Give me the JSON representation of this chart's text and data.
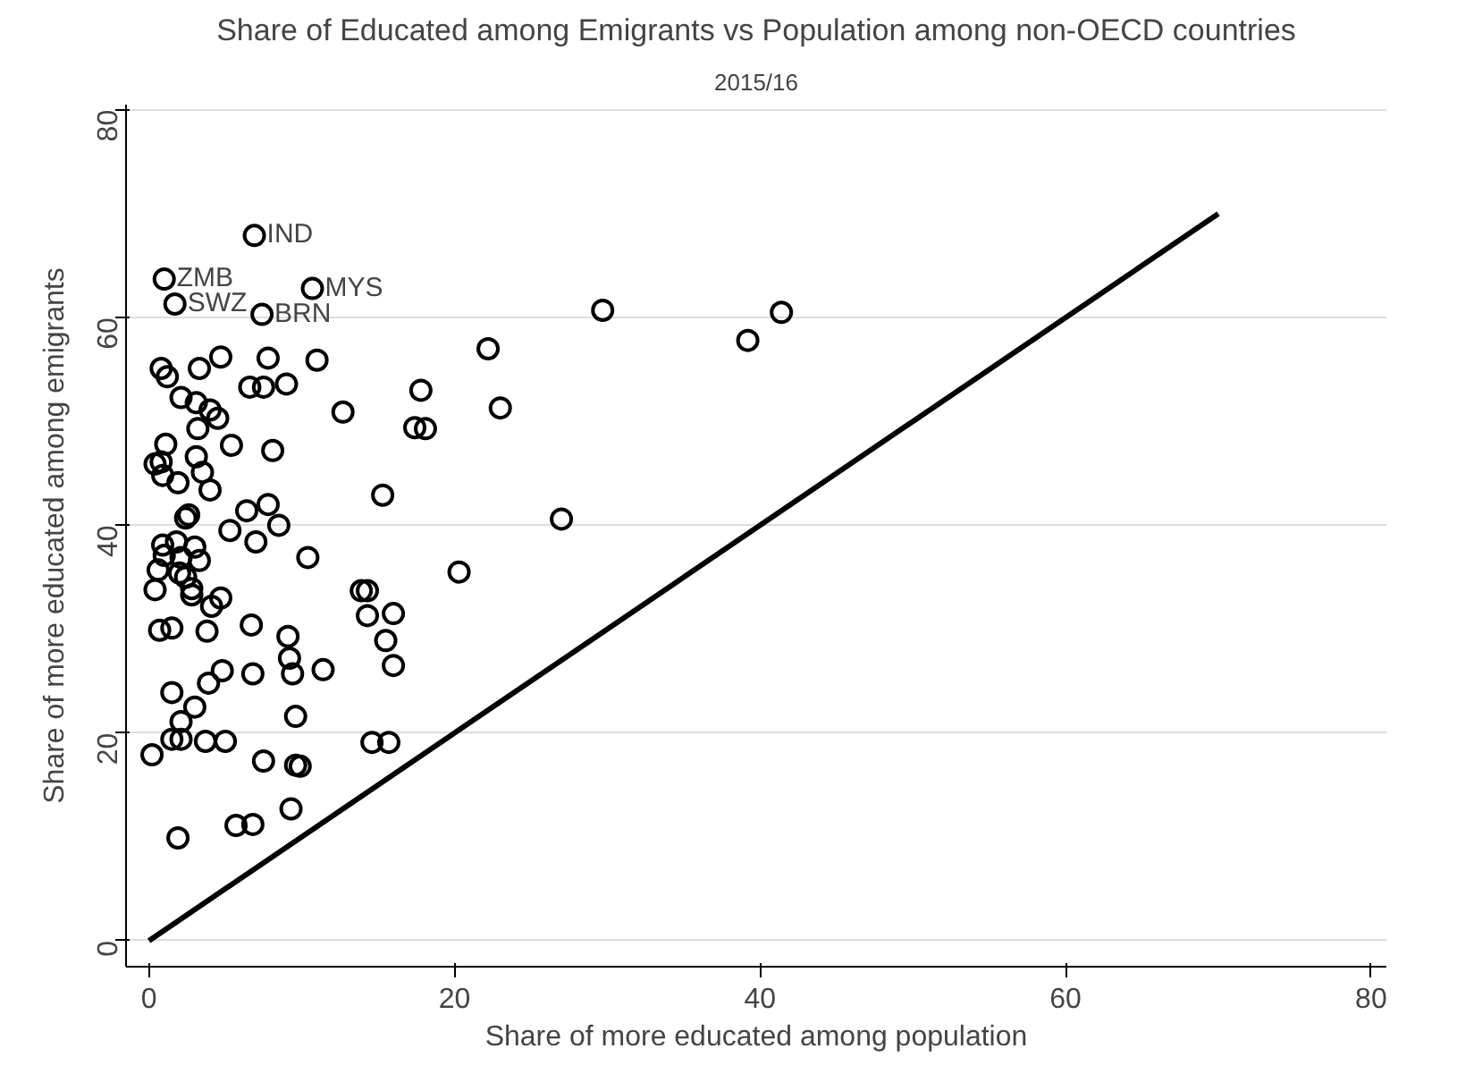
{
  "chart_data": {
    "type": "scatter",
    "title": "Share of Educated among Emigrants vs Population among non-OECD countries",
    "subtitle": "2015/16",
    "xlabel": "Share of more educated among population",
    "ylabel": "Share of more educated among emigrants",
    "xlim": [
      -1.5,
      81
    ],
    "ylim": [
      -2.5,
      80.5
    ],
    "xticks": [
      0,
      20,
      40,
      60,
      80
    ],
    "yticks": [
      0,
      20,
      40,
      60,
      80
    ],
    "grid": "y",
    "series": [
      {
        "marker": "circle",
        "color": "#000000",
        "x": [
          6.9,
          1.0,
          1.7,
          7.4,
          10.7,
          29.7,
          41.4,
          39.2,
          22.2,
          17.8,
          23.0,
          12.7,
          17.4,
          18.1,
          15.3,
          27.0,
          20.3,
          13.9,
          14.3,
          14.3,
          16.0,
          15.5,
          16.0,
          14.6,
          15.7,
          4.7,
          7.8,
          11.0,
          0.8,
          1.2,
          3.3,
          6.6,
          7.5,
          9.0,
          2.1,
          3.1,
          4.0,
          4.5,
          3.2,
          5.4,
          8.1,
          1.1,
          3.1,
          0.4,
          0.8,
          0.9,
          1.9,
          3.5,
          4.0,
          6.4,
          7.8,
          2.4,
          2.6,
          8.5,
          5.3,
          7.0,
          0.9,
          1.8,
          3.0,
          1.0,
          3.3,
          10.4,
          2.1,
          0.6,
          2.0,
          2.4,
          0.4,
          2.8,
          2.8,
          4.7,
          4.1,
          0.7,
          1.5,
          3.8,
          6.7,
          9.1,
          9.2,
          9.4,
          11.4,
          6.8,
          4.8,
          3.9,
          1.5,
          3.0,
          9.6,
          2.1,
          1.5,
          2.1,
          3.7,
          5.0,
          0.2,
          7.5,
          9.6,
          9.9,
          9.3,
          5.7,
          6.8,
          1.9
        ],
        "values": [
          67.9,
          63.7,
          61.3,
          60.3,
          62.8,
          60.7,
          60.5,
          57.8,
          57.0,
          53.0,
          51.3,
          50.9,
          49.4,
          49.3,
          42.9,
          40.6,
          35.5,
          33.7,
          33.7,
          31.3,
          31.5,
          28.9,
          26.5,
          19.1,
          19.1,
          56.2,
          56.1,
          55.9,
          55.1,
          54.3,
          55.1,
          53.3,
          53.3,
          53.6,
          52.3,
          51.8,
          51.1,
          50.3,
          49.3,
          47.7,
          47.2,
          47.8,
          46.6,
          45.9,
          46.1,
          44.8,
          44.1,
          45.1,
          43.4,
          41.4,
          42.0,
          40.7,
          41.0,
          40.0,
          39.5,
          38.4,
          38.1,
          38.4,
          37.9,
          37.1,
          36.6,
          36.9,
          36.9,
          35.7,
          35.4,
          35.0,
          33.8,
          33.9,
          33.3,
          33.0,
          32.2,
          29.9,
          30.1,
          29.8,
          30.4,
          29.3,
          27.2,
          25.7,
          26.1,
          25.7,
          26.0,
          24.8,
          23.9,
          22.5,
          21.6,
          21.1,
          19.4,
          19.4,
          19.2,
          19.2,
          17.9,
          17.3,
          16.9,
          16.8,
          12.7,
          11.1,
          11.2,
          9.9
        ]
      },
      {
        "type": "line",
        "marker": "none",
        "color": "#000000",
        "x": [
          0,
          70
        ],
        "values": [
          0,
          70
        ]
      }
    ],
    "annotations": [
      {
        "text": "IND",
        "x": 6.9,
        "y": 67.9
      },
      {
        "text": "ZMB",
        "x": 1.0,
        "y": 63.7
      },
      {
        "text": "SWZ",
        "x": 1.7,
        "y": 61.3
      },
      {
        "text": "BRN",
        "x": 7.4,
        "y": 60.3
      },
      {
        "text": "MYS",
        "x": 10.7,
        "y": 62.8
      }
    ]
  }
}
